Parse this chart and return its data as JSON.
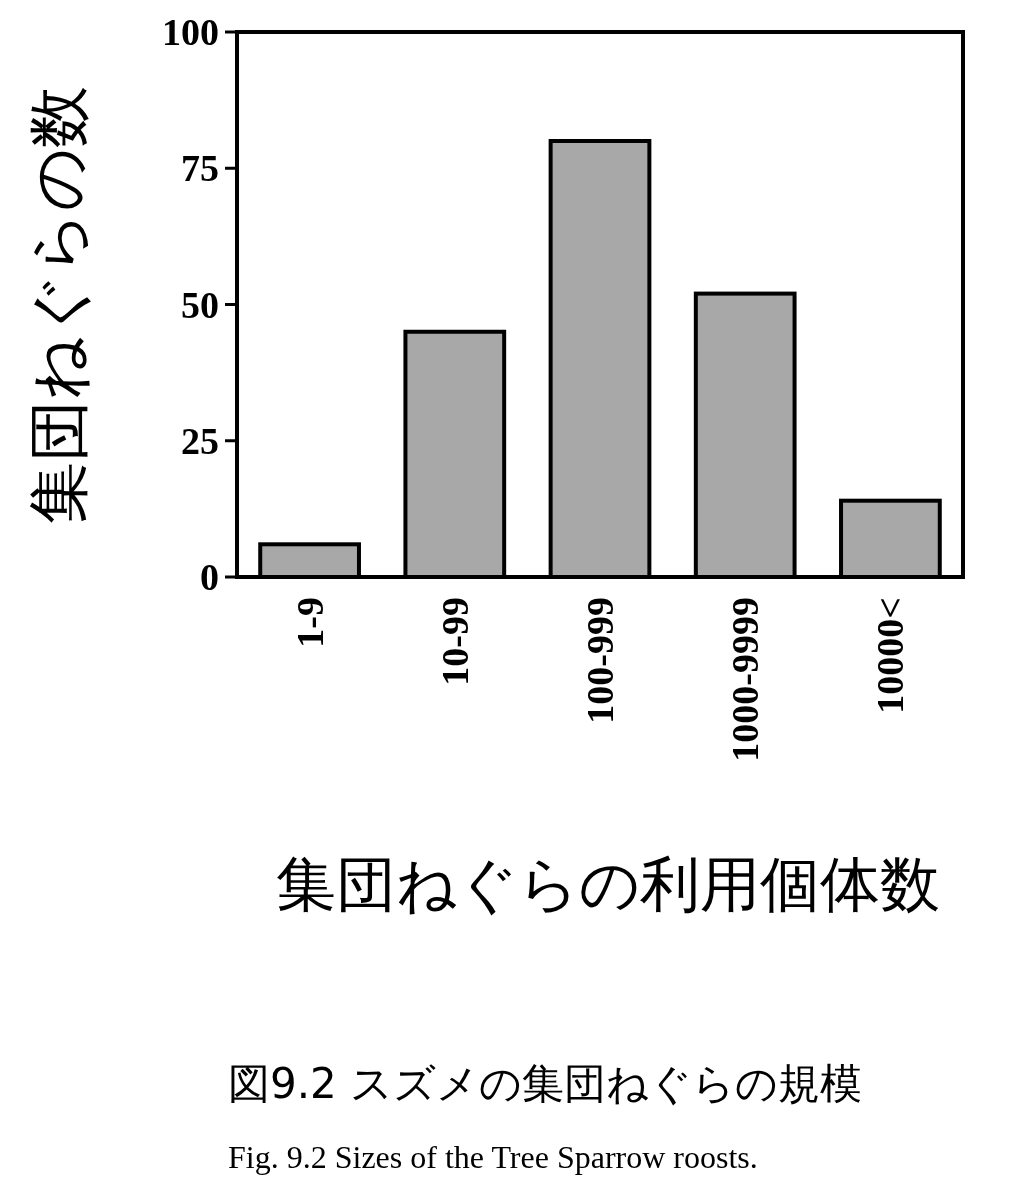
{
  "chart_data": {
    "type": "bar",
    "title": "図9.2 スズメの集団ねぐらの規模",
    "subtitle": "Fig. 9.2  Sizes of the Tree Sparrow roosts.",
    "xlabel": "集団ねぐらの利用個体数",
    "ylabel": "集団ねぐらの数",
    "categories": [
      "1-9",
      "10-99",
      "100-999",
      "1000-9999",
      "10000<"
    ],
    "values": [
      6,
      45,
      80,
      52,
      14
    ],
    "color": "#a8a8a8",
    "ylim": [
      0,
      100
    ],
    "yticks": [
      0,
      25,
      50,
      75,
      100
    ],
    "grid": false
  }
}
